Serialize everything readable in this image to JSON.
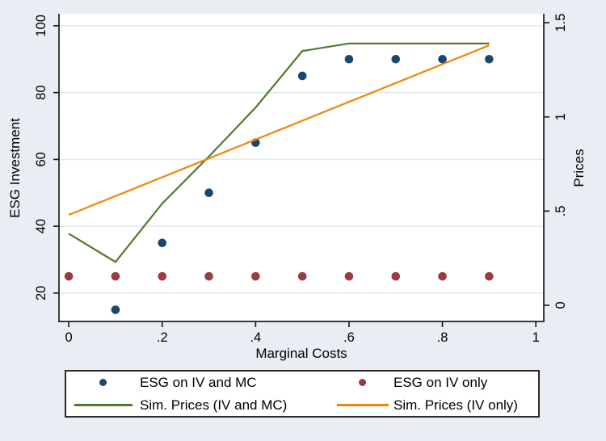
{
  "colors": {
    "background": "#e8eef4",
    "plot_background": "#ffffff",
    "gridline": "#e2eaf2",
    "axis": "#1f1f1f",
    "text": "#000000",
    "navy": "#1a476f",
    "maroon": "#993b3f",
    "green": "#52792c",
    "orange": "#ef8508"
  },
  "chart_data": {
    "type": "scatter",
    "subtype": "dual-axis scatter with overlaid lines (Stata s2color style)",
    "title": "",
    "grid": "horizontal gridlines at left-axis ticks",
    "legend_position": "bottom, boxed, 2 columns x 2 rows",
    "x_axis": {
      "label": "Marginal Costs",
      "ticks": [
        0,
        0.2,
        0.4,
        0.6,
        0.8,
        1
      ],
      "tick_labels": [
        "0",
        ".2",
        ".4",
        ".6",
        ".8",
        "1"
      ],
      "range": [
        -0.021,
        1.017
      ]
    },
    "y_left": {
      "label": "ESG Investment",
      "ticks": [
        20,
        40,
        60,
        80,
        100
      ],
      "tick_labels": [
        "20",
        "40",
        "60",
        "80",
        "100"
      ],
      "range": [
        11.5,
        103.6
      ]
    },
    "y_right": {
      "label": "Prices",
      "ticks": [
        0,
        0.5,
        1,
        1.5
      ],
      "tick_labels": [
        "0",
        ".5",
        "1",
        "1.5"
      ],
      "range": [
        -0.086,
        1.548
      ]
    },
    "series": [
      {
        "name": "ESG on IV and MC",
        "type": "scatter",
        "axis": "left",
        "color": "navy",
        "x": [
          0.1,
          0.2,
          0.3,
          0.4,
          0.5,
          0.6,
          0.7,
          0.8,
          0.9
        ],
        "y": [
          15,
          35,
          50,
          65,
          85,
          90,
          90,
          90,
          90
        ]
      },
      {
        "name": "ESG on IV only",
        "type": "scatter",
        "axis": "left",
        "color": "maroon",
        "x": [
          0,
          0.1,
          0.2,
          0.3,
          0.4,
          0.5,
          0.6,
          0.7,
          0.8,
          0.9
        ],
        "y": [
          25,
          25,
          25,
          25,
          25,
          25,
          25,
          25,
          25,
          25
        ]
      },
      {
        "name": "Sim. Prices (IV and MC)",
        "type": "line",
        "axis": "right",
        "color": "green",
        "x": [
          0,
          0.1,
          0.2,
          0.3,
          0.4,
          0.5,
          0.6,
          0.7,
          0.8,
          0.9
        ],
        "y": [
          0.38,
          0.23,
          0.54,
          0.79,
          1.05,
          1.35,
          1.39,
          1.39,
          1.39,
          1.39
        ]
      },
      {
        "name": "Sim. Prices (IV only)",
        "type": "line",
        "axis": "right",
        "color": "orange",
        "x": [
          0,
          0.9
        ],
        "y": [
          0.48,
          1.38
        ]
      }
    ]
  }
}
